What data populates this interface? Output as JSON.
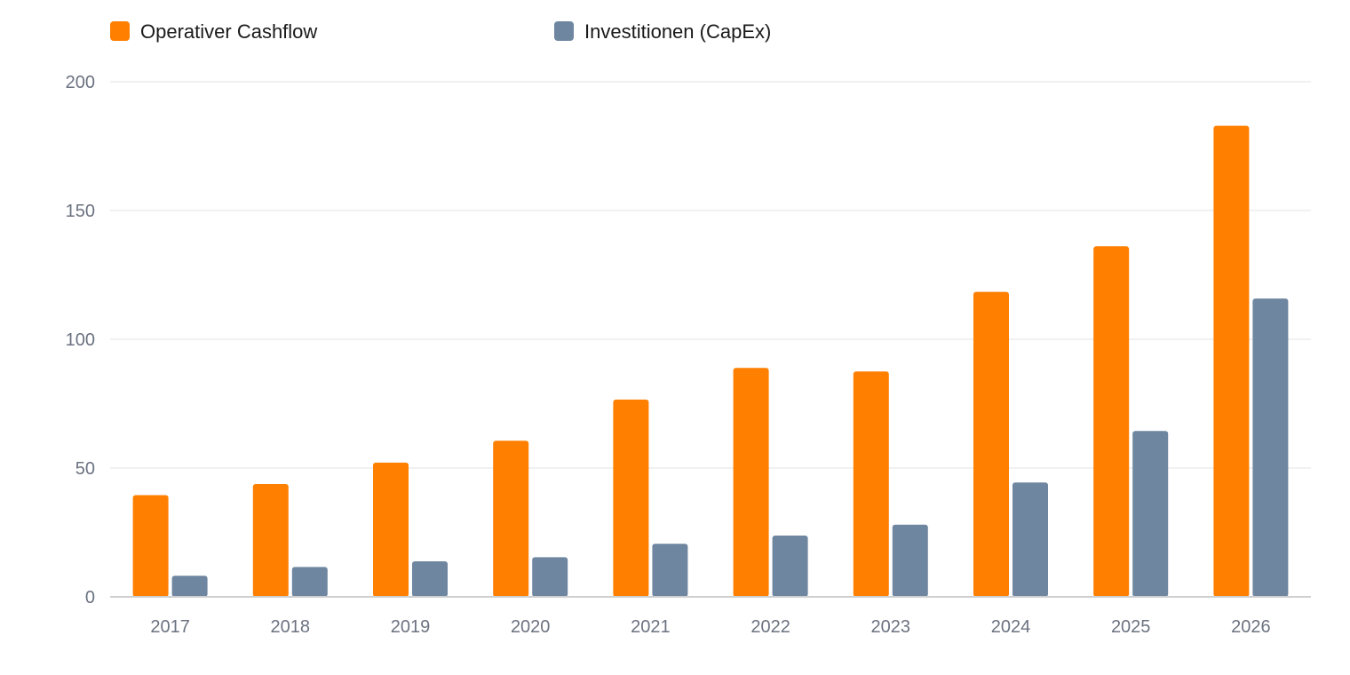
{
  "chart_data": {
    "type": "bar",
    "title": "",
    "xlabel": "",
    "ylabel": "",
    "categories": [
      "2017",
      "2018",
      "2019",
      "2020",
      "2021",
      "2022",
      "2023",
      "2024",
      "2025",
      "2026"
    ],
    "series": [
      {
        "name": "Operativer Cashflow",
        "color": "#ff7f00",
        "values": [
          39.5,
          43.8,
          52.1,
          60.6,
          76.6,
          88.9,
          87.5,
          118.4,
          136.1,
          182.9
        ]
      },
      {
        "name": "Investitionen (CapEx)",
        "color": "#6f86a0",
        "values": [
          8.2,
          11.6,
          13.8,
          15.4,
          20.6,
          23.8,
          28.0,
          44.4,
          64.4,
          115.8
        ]
      }
    ],
    "ylim": [
      0,
      200
    ],
    "yticks": [
      0,
      50,
      100,
      150,
      200
    ],
    "grid": true,
    "legend_position": "top-left"
  }
}
